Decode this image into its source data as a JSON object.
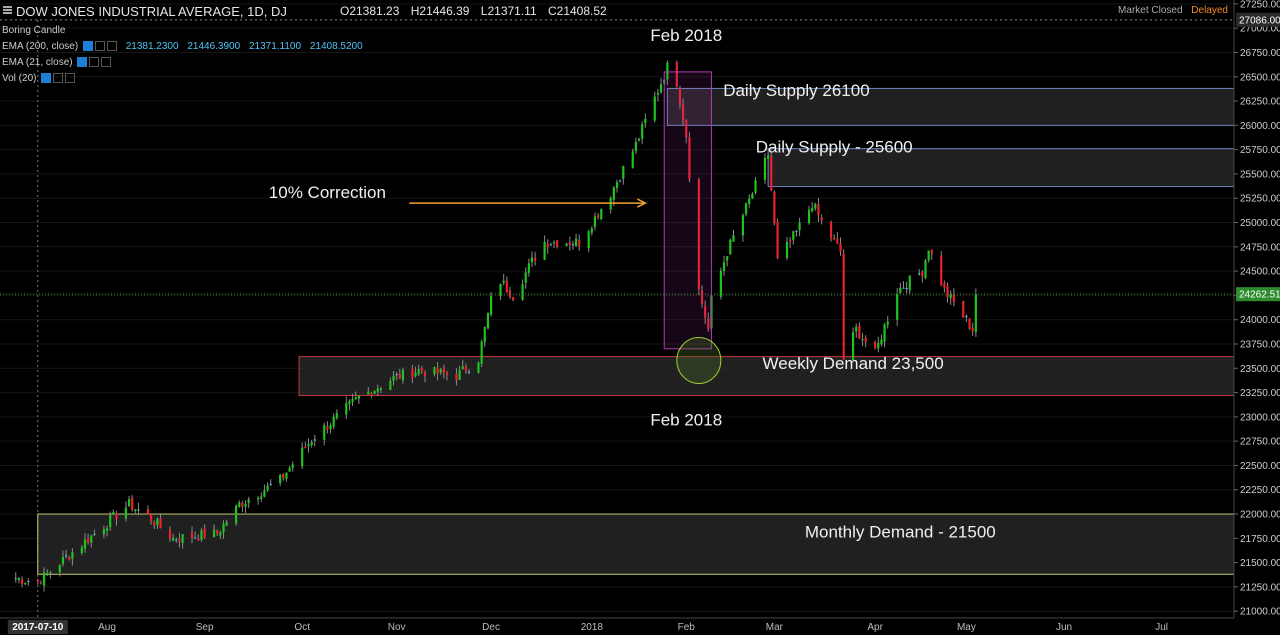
{
  "header": {
    "symbol_title": "DOW JONES INDUSTRIAL AVERAGE, 1D, DJ",
    "ohlc": [
      "O21381.23",
      "H21446.39",
      "L21371.11",
      "C21408.52"
    ],
    "status": "Market Closed",
    "delayed": "Delayed"
  },
  "indicators": [
    {
      "label": "Boring Candle",
      "values": []
    },
    {
      "label": "EMA (200, close)",
      "values": [
        "21381.2300",
        "21446.3900",
        "21371.1100",
        "21408.5200"
      ]
    },
    {
      "label": "EMA (21, close)",
      "values": []
    },
    {
      "label": "Vol (20)",
      "values": []
    }
  ],
  "colors": {
    "up": "#1ec31e",
    "down": "#e8222e",
    "neutral": "#4dc3ff",
    "zone_fill": "#2b2b2b",
    "supply_border": "#6f86c4",
    "demand_border": "#c43a3a",
    "monthly_border": "#c8c870",
    "highlight": "#b03cb0",
    "arrow": "#f0a030",
    "ellipse": "#9acd32",
    "last_price": "#3a9f3a"
  },
  "chart_data": {
    "type": "candlestick",
    "yaxis": {
      "ticks": [
        21000,
        21250,
        21500,
        21750,
        22000,
        22250,
        22500,
        22750,
        23000,
        23250,
        23500,
        23750,
        24000,
        24250,
        24500,
        24750,
        25000,
        25250,
        25500,
        25750,
        26000,
        26250,
        26500,
        26750,
        27000,
        27250
      ],
      "tick_labels": [
        "21000.00",
        "21250.00",
        "21500.00",
        "21750.00",
        "22000.00",
        "22250.00",
        "22500.00",
        "22750.00",
        "23000.00",
        "23250.00",
        "23500.00",
        "23750.00",
        "24000.00",
        "24250.00",
        "24500.00",
        "24750.00",
        "25000.00",
        "25250.00",
        "25500.00",
        "25750.00",
        "26000.00",
        "26250.00",
        "26500.00",
        "26750.00",
        "27000.00",
        "27250.00"
      ],
      "range": [
        20930,
        27290
      ],
      "top_label": "27086.00",
      "last_price": 24262.51,
      "last_price_label": "24262.51"
    },
    "xaxis": {
      "labels": [
        "2017-07-10",
        "Aug",
        "Sep",
        "Oct",
        "Nov",
        "Dec",
        "2018",
        "Feb",
        "Mar",
        "Apr",
        "May",
        "Jun",
        "Jul"
      ],
      "dates": [
        "2017-07-10",
        "2017-08-01",
        "2017-09-01",
        "2017-10-02",
        "2017-11-01",
        "2017-12-01",
        "2018-01-02",
        "2018-02-01",
        "2018-03-01",
        "2018-04-02",
        "2018-05-01",
        "2018-06-01",
        "2018-07-02"
      ],
      "range": [
        "2017-06-28",
        "2018-07-25"
      ]
    },
    "anchor_points": [
      [
        "2017-07-01",
        21350
      ],
      [
        "2017-07-10",
        21300
      ],
      [
        "2017-07-20",
        21580
      ],
      [
        "2017-08-08",
        22100
      ],
      [
        "2017-08-14",
        21980
      ],
      [
        "2017-08-22",
        21750
      ],
      [
        "2017-09-05",
        21800
      ],
      [
        "2017-09-12",
        22100
      ],
      [
        "2017-09-25",
        22350
      ],
      [
        "2017-10-05",
        22770
      ],
      [
        "2017-10-20",
        23200
      ],
      [
        "2017-10-31",
        23400
      ],
      [
        "2017-11-08",
        23480
      ],
      [
        "2017-11-20",
        23420
      ],
      [
        "2017-11-27",
        23600
      ],
      [
        "2017-12-01",
        24200
      ],
      [
        "2017-12-04",
        24400
      ],
      [
        "2017-12-08",
        24250
      ],
      [
        "2017-12-14",
        24600
      ],
      [
        "2017-12-18",
        24800
      ],
      [
        "2017-12-29",
        24800
      ],
      [
        "2018-01-08",
        25300
      ],
      [
        "2018-01-16",
        25800
      ],
      [
        "2018-01-26",
        26600
      ],
      [
        "2018-01-29",
        26450
      ],
      [
        "2018-02-01",
        25900
      ],
      [
        "2018-02-05",
        24300
      ],
      [
        "2018-02-08",
        23900
      ],
      [
        "2018-02-09",
        24200
      ],
      [
        "2018-02-14",
        24700
      ],
      [
        "2018-02-22",
        25300
      ],
      [
        "2018-02-27",
        25700
      ],
      [
        "2018-03-02",
        24600
      ],
      [
        "2018-03-08",
        24900
      ],
      [
        "2018-03-13",
        25200
      ],
      [
        "2018-03-16",
        25000
      ],
      [
        "2018-03-22",
        24700
      ],
      [
        "2018-03-23",
        23600
      ],
      [
        "2018-03-27",
        23900
      ],
      [
        "2018-04-02",
        23650
      ],
      [
        "2018-04-09",
        24300
      ],
      [
        "2018-04-17",
        24500
      ],
      [
        "2018-04-19",
        24750
      ],
      [
        "2018-04-24",
        24300
      ],
      [
        "2018-05-03",
        23900
      ],
      [
        "2018-05-04",
        24262
      ]
    ],
    "annotations": [
      {
        "text": "Feb 2018",
        "date": "2018-02-01",
        "price": 26870
      },
      {
        "text": "Daily Supply 26100",
        "date": "2018-03-08",
        "price": 26300
      },
      {
        "text": "Daily Supply - 25600",
        "date": "2018-03-20",
        "price": 25720
      },
      {
        "text": "10% Correction",
        "date": "2017-10-10",
        "price": 25250
      },
      {
        "text": "Weekly Demand 23,500",
        "date": "2018-03-26",
        "price": 23490
      },
      {
        "text": "Feb 2018",
        "date": "2018-02-01",
        "price": 22910
      },
      {
        "text": "Monthly Demand - 21500",
        "date": "2018-04-10",
        "price": 21760
      }
    ],
    "zones": [
      {
        "name": "Daily Supply 26100",
        "date_from": "2018-01-26",
        "price_top": 26380,
        "price_bottom": 26000
      },
      {
        "name": "Daily Supply - 25600",
        "date_from": "2018-02-27",
        "price_top": 25760,
        "price_bottom": 25370
      },
      {
        "name": "Weekly Demand 23,500",
        "date_from": "2017-10-01",
        "price_top": 23620,
        "price_bottom": 23220
      },
      {
        "name": "Monthly Demand - 21500",
        "date_from": "2017-07-10",
        "price_top": 22000,
        "price_bottom": 21380
      }
    ],
    "highlight_box": {
      "date_from": "2018-01-25",
      "date_to": "2018-02-09",
      "price_top": 26550,
      "price_bottom": 23700
    },
    "arrow": {
      "date_from": "2017-11-05",
      "date_to": "2018-01-19",
      "price": 25200
    },
    "ellipse": {
      "date": "2018-02-05",
      "price": 23580
    }
  }
}
